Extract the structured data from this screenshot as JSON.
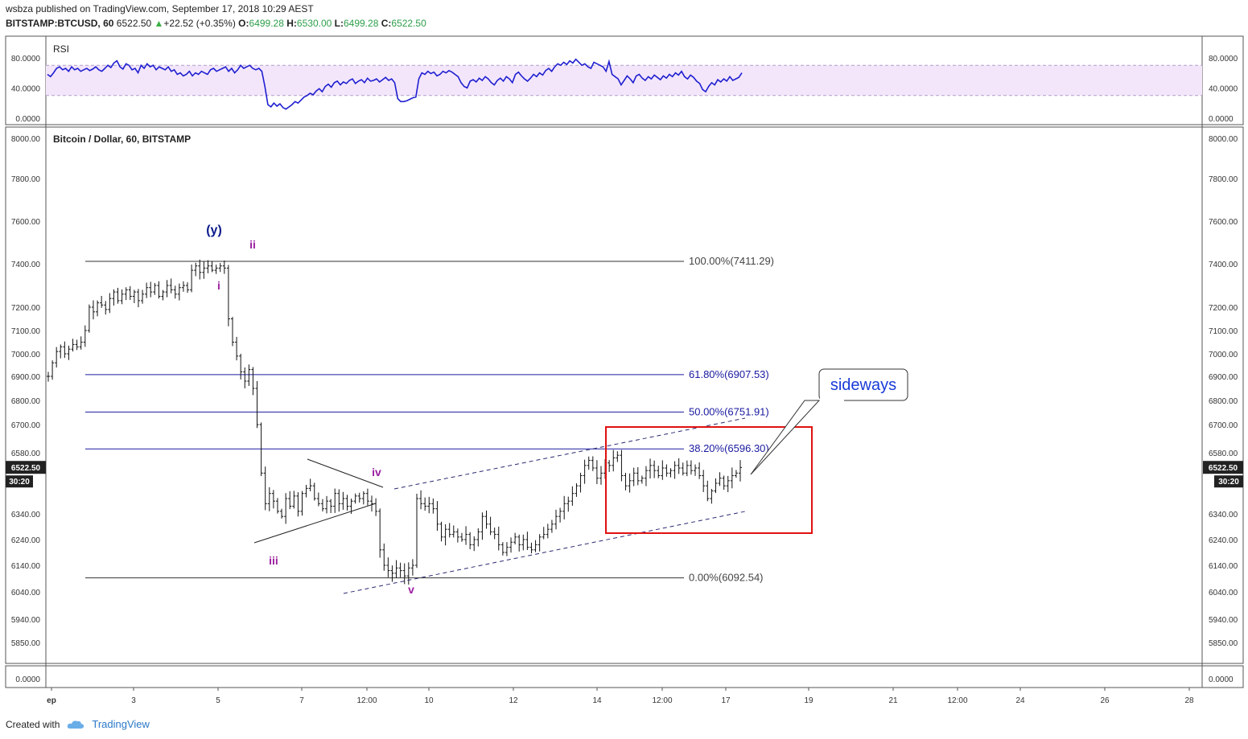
{
  "header": {
    "publisher": "wsbza",
    "published_text": "published on TradingView.com, September 17, 2018 10:29 AEST",
    "symbol": "BITSTAMP:BTCUSD, 60",
    "last": "6522.50",
    "change": "+22.52 (+0.35%)",
    "open_label": "O:",
    "open": "6499.28",
    "high_label": "H:",
    "high": "6530.00",
    "low_label": "L:",
    "low": "6499.28",
    "close_label": "C:",
    "close": "6522.50"
  },
  "footer": {
    "created_with": "Created with",
    "brand": "TradingView"
  },
  "colors": {
    "rsi_line": "#1f1fd0",
    "rsi_band": "#f3e6fb",
    "fib_blue": "#1a1aa0",
    "fib_gray": "#333333",
    "wave_purple": "#9b1fa1",
    "wave_navy": "#0b1a8a",
    "box_red": "#e01010",
    "bars": "#111111"
  },
  "chart_data": [
    {
      "type": "line",
      "title": "RSI",
      "ylim": [
        0,
        100
      ],
      "yticks": [
        "80.0000",
        "40.0000",
        "0.0000"
      ],
      "band": [
        30,
        70
      ],
      "series": [
        {
          "values": [
            58,
            55,
            60,
            66,
            68,
            64,
            66,
            62,
            68,
            64,
            66,
            62,
            64,
            66,
            63,
            65,
            68,
            64,
            62,
            66,
            70,
            67,
            73,
            76,
            68,
            65,
            72,
            70,
            64,
            66,
            60,
            70,
            66,
            72,
            68,
            70,
            64,
            68,
            66,
            64,
            68,
            62,
            64,
            58,
            60,
            56,
            58,
            62,
            56,
            60,
            58,
            62,
            60,
            58,
            64,
            66,
            62,
            64,
            66,
            68,
            62,
            66,
            60,
            64,
            70,
            66,
            68,
            70,
            66,
            64,
            66,
            62,
            42,
            18,
            15,
            20,
            16,
            19,
            14,
            12,
            15,
            18,
            22,
            20,
            24,
            28,
            30,
            33,
            31,
            36,
            39,
            35,
            42,
            45,
            41,
            47,
            49,
            44,
            48,
            46,
            50,
            52,
            46,
            49,
            51,
            47,
            53,
            49,
            50,
            52,
            48,
            51,
            54,
            50,
            52,
            47,
            26,
            22,
            22,
            23,
            25,
            27,
            28,
            52,
            60,
            58,
            62,
            59,
            61,
            56,
            58,
            62,
            60,
            63,
            61,
            58,
            55,
            47,
            42,
            40,
            49,
            51,
            48,
            53,
            50,
            55,
            52,
            47,
            44,
            50,
            53,
            49,
            55,
            52,
            47,
            58,
            61,
            56,
            52,
            49,
            53,
            58,
            55,
            60,
            57,
            63,
            66,
            62,
            68,
            72,
            70,
            74,
            71,
            76,
            73,
            78,
            74,
            70,
            72,
            68,
            66,
            74,
            72,
            70,
            68,
            62,
            75,
            58,
            55,
            52,
            44,
            50,
            56,
            52,
            47,
            56,
            58,
            53,
            50,
            55,
            52,
            57,
            54,
            51,
            56,
            53,
            58,
            55,
            60,
            57,
            62,
            55,
            52,
            57,
            54,
            49,
            46,
            38,
            35,
            42,
            47,
            44,
            51,
            48,
            52,
            49,
            55,
            50,
            52,
            54,
            60
          ]
        }
      ]
    },
    {
      "type": "bar",
      "title": "Bitcoin / Dollar, 60, BITSTAMP",
      "ylim": [
        5800,
        8050
      ],
      "yticks": [
        "8000.00",
        "7800.00",
        "7600.00",
        "7400.00",
        "7200.00",
        "7100.00",
        "7000.00",
        "6900.00",
        "6800.00",
        "6700.00",
        "6580.00",
        "6340.00",
        "6240.00",
        "6140.00",
        "6040.00",
        "5940.00",
        "5850.00"
      ],
      "xticks": [
        "ep",
        "3",
        "5",
        "7",
        "12:00",
        "10",
        "12",
        "14",
        "12:00",
        "17",
        "19",
        "21",
        "12:00",
        "24",
        "26",
        "28"
      ],
      "last_price_label": "6522.50",
      "countdown_label": "30:20",
      "fib_levels": [
        {
          "label": "100.00%(7411.29)",
          "value": 7411.29
        },
        {
          "label": "61.80%(6907.53)",
          "value": 6907.53
        },
        {
          "label": "50.00%(6751.91)",
          "value": 6751.91
        },
        {
          "label": "38.20%(6596.30)",
          "value": 6596.3
        },
        {
          "label": "0.00%(6092.54)",
          "value": 6092.54
        }
      ],
      "wave_labels": [
        {
          "text": "(y)",
          "x": "Sep 5",
          "y": 7500
        },
        {
          "text": "ii",
          "x": "Sep 5 12:00",
          "y": 7430
        },
        {
          "text": "i",
          "x": "Sep 5",
          "y": 7270
        },
        {
          "text": "iii",
          "x": "Sep 6 12:00",
          "y": 6190
        },
        {
          "text": "iv",
          "x": "Sep 9",
          "y": 6450
        },
        {
          "text": "v",
          "x": "Sep 9 21:00",
          "y": 6050
        }
      ],
      "annotation": "sideways",
      "series": [
        {
          "values": [
            6900,
            6960,
            7010,
            7030,
            7000,
            7020,
            7040,
            7030,
            7050,
            7100,
            7200,
            7180,
            7220,
            7210,
            7190,
            7240,
            7270,
            7230,
            7260,
            7280,
            7250,
            7270,
            7230,
            7260,
            7290,
            7270,
            7300,
            7250,
            7270,
            7300,
            7280,
            7260,
            7290,
            7300,
            7280,
            7370,
            7390,
            7360,
            7380,
            7390,
            7370,
            7380,
            7390,
            7380,
            7150,
            7050,
            6990,
            6920,
            6880,
            6930,
            6850,
            6700,
            6500,
            6380,
            6420,
            6390,
            6350,
            6330,
            6400,
            6370,
            6410,
            6350,
            6420,
            6440,
            6450,
            6400,
            6380,
            6360,
            6390,
            6370,
            6420,
            6380,
            6400,
            6370,
            6390,
            6410,
            6400,
            6420,
            6390,
            6380,
            6350,
            6200,
            6140,
            6120,
            6110,
            6130,
            6120,
            6100,
            6130,
            6140,
            6400,
            6380,
            6370,
            6380,
            6360,
            6300,
            6250,
            6280,
            6260,
            6270,
            6250,
            6240,
            6260,
            6220,
            6240,
            6270,
            6330,
            6300,
            6270,
            6260,
            6220,
            6190,
            6210,
            6230,
            6250,
            6220,
            6240,
            6210,
            6200,
            6220,
            6250,
            6260,
            6280,
            6300,
            6330,
            6350,
            6380,
            6390,
            6420,
            6450,
            6490,
            6530,
            6550,
            6520,
            6480,
            6500,
            6540,
            6530,
            6560,
            6570,
            6490,
            6450,
            6470,
            6500,
            6470,
            6480,
            6510,
            6530,
            6510,
            6490,
            6520,
            6500,
            6510,
            6530,
            6520,
            6500,
            6530,
            6510,
            6520,
            6490,
            6450,
            6400,
            6430,
            6460,
            6480,
            6450,
            6470,
            6490,
            6500,
            6522
          ]
        }
      ]
    }
  ]
}
